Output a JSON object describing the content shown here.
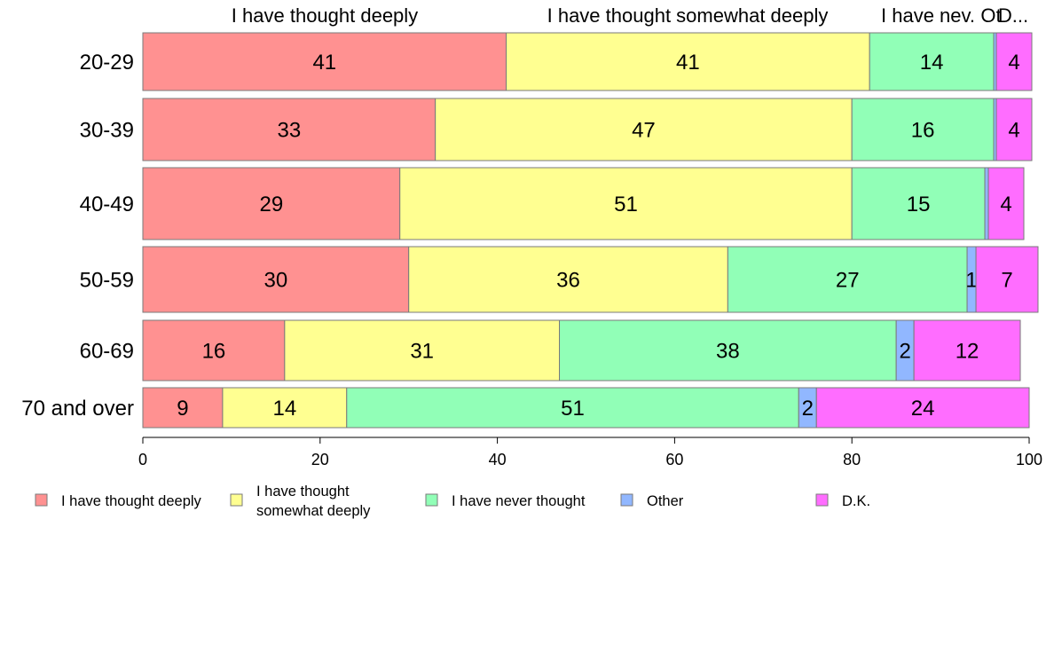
{
  "chart_data": {
    "type": "bar",
    "orientation": "horizontal",
    "stacked": true,
    "categories": [
      "20-29",
      "30-39",
      "40-49",
      "50-59",
      "60-69",
      "70 and over"
    ],
    "series": [
      {
        "name": "I have thought deeply",
        "color": "#ff9191",
        "values": [
          41,
          33,
          29,
          30,
          16,
          9
        ],
        "labels": [
          "41",
          "33",
          "29",
          "30",
          "16",
          "9"
        ]
      },
      {
        "name": "I have thought somewhat deeply",
        "color": "#ffff91",
        "values": [
          41,
          47,
          51,
          36,
          31,
          14
        ],
        "labels": [
          "41",
          "47",
          "51",
          "36",
          "31",
          "14"
        ]
      },
      {
        "name": "I have never thought",
        "color": "#91ffb7",
        "values": [
          14,
          16,
          15,
          27,
          38,
          51
        ],
        "labels": [
          "14",
          "16",
          "15",
          "27",
          "38",
          "51"
        ]
      },
      {
        "name": "Other",
        "color": "#91b7ff",
        "values": [
          0.3,
          0.3,
          0.4,
          1,
          2,
          2
        ],
        "labels": [
          "",
          "",
          "",
          "1",
          "2",
          "2"
        ]
      },
      {
        "name": "D.K.",
        "color": "#ff6dff",
        "values": [
          4,
          4,
          4,
          7,
          12,
          24
        ],
        "labels": [
          "4",
          "4",
          "4",
          "7",
          "12",
          "24"
        ]
      }
    ],
    "header_labels": [
      "I have thought deeply",
      "I have thought somewhat deeply",
      "I have nev.",
      "Ot",
      "D..."
    ],
    "xlim": [
      0,
      100
    ],
    "xticks": [
      "0",
      "20",
      "40",
      "60",
      "80",
      "100"
    ],
    "legend": {
      "placement": "bottom",
      "entries": [
        {
          "lines": [
            "I have thought deeply"
          ],
          "color": "#ff9191"
        },
        {
          "lines": [
            "I have thought",
            "somewhat deeply"
          ],
          "color": "#ffff91"
        },
        {
          "lines": [
            "I have never thought"
          ],
          "color": "#91ffb7"
        },
        {
          "lines": [
            "Other"
          ],
          "color": "#91b7ff"
        },
        {
          "lines": [
            "D.K."
          ],
          "color": "#ff6dff"
        }
      ]
    },
    "grid": false
  }
}
